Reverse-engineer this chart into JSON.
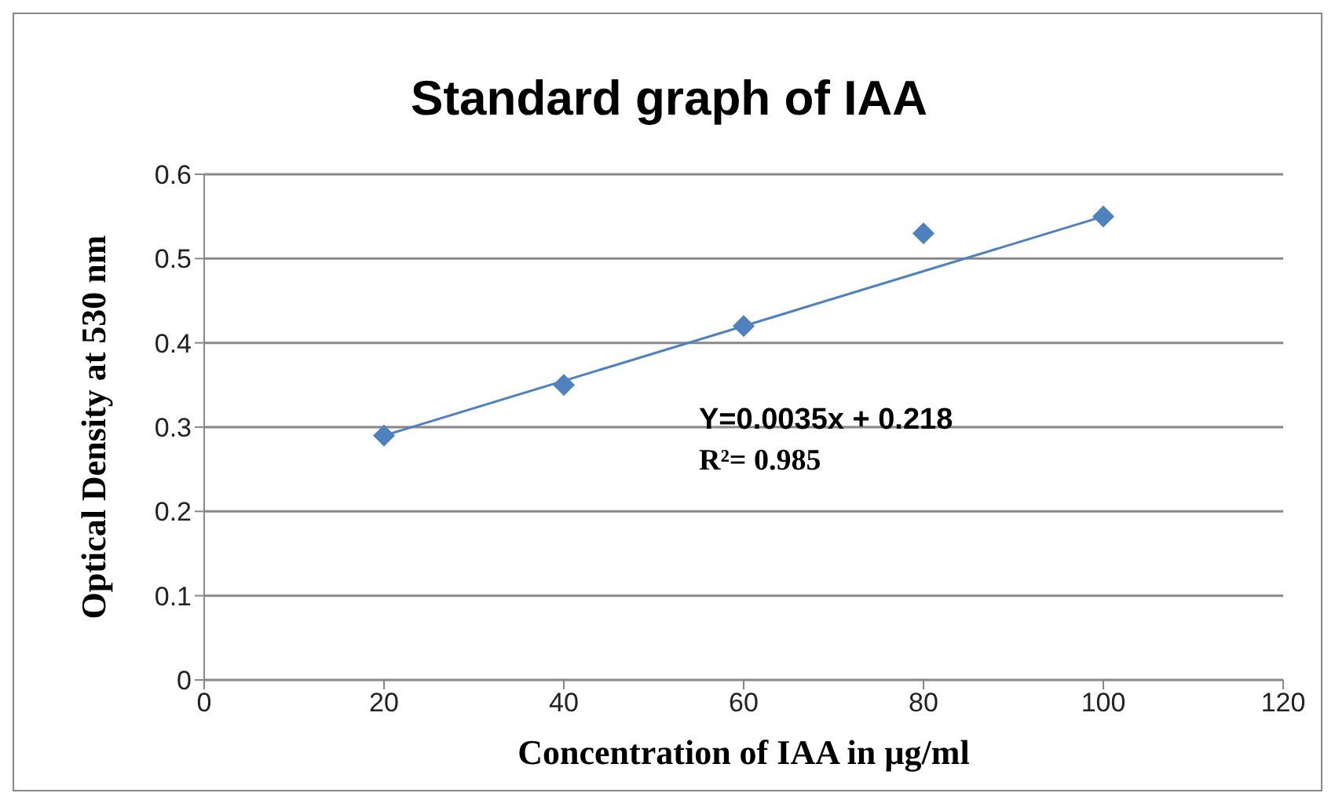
{
  "chart_data": {
    "type": "scatter",
    "title": "Standard graph of IAA",
    "xlabel": "Concentration  of IAA in µg/ml",
    "ylabel": "Optical Density at 530 nm",
    "x": [
      20,
      40,
      60,
      80,
      100
    ],
    "series": [
      {
        "color": "#4f81bd",
        "values": [
          0.29,
          0.35,
          0.42,
          0.53,
          0.55
        ],
        "marker": "diamond"
      },
      {
        "type": "line",
        "color": "#4f81bd",
        "x": [
          20,
          100
        ],
        "values": [
          0.29,
          0.55
        ],
        "marker": "none"
      }
    ],
    "xlim": [
      0,
      120
    ],
    "xticks": [
      0,
      20,
      40,
      60,
      80,
      100,
      120
    ],
    "ylim": [
      0,
      0.6
    ],
    "yticks": [
      0,
      0.1,
      0.2,
      0.3,
      0.4,
      0.5,
      0.6
    ],
    "grid": "y",
    "annotations": [
      "Y=0.0035x + 0.218",
      "R²= 0.985"
    ]
  }
}
